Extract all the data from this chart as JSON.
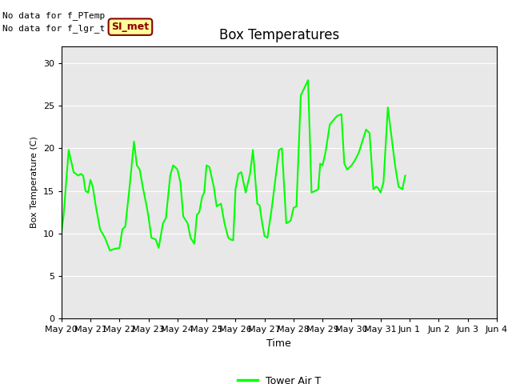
{
  "title": "Box Temperatures",
  "ylabel": "Box Temperature (C)",
  "xlabel": "Time",
  "ylim": [
    0,
    32
  ],
  "yticks": [
    0,
    5,
    10,
    15,
    20,
    25,
    30
  ],
  "line_color": "#00FF00",
  "line_width": 1.5,
  "bg_color": "#E8E8E8",
  "no_data_text1": "No data for f_PTemp",
  "no_data_text2": "No data for f_lgr_t",
  "legend_label": "Tower Air T",
  "annotation_text": "SI_met",
  "annotation_bg": "#FFFF99",
  "annotation_border": "#8B0000",
  "x_labels": [
    "May 20",
    "May 21",
    "May 22",
    "May 23",
    "May 24",
    "May 25",
    "May 26",
    "May 27",
    "May 28",
    "May 29",
    "May 30",
    "May 31",
    "Jun 1",
    "Jun 2",
    "Jun 3",
    "Jun 4"
  ],
  "y_values": [
    10.0,
    12.0,
    19.8,
    17.2,
    16.8,
    17.0,
    16.8,
    15.0,
    14.8,
    16.3,
    15.5,
    13.5,
    10.5,
    9.5,
    8.0,
    8.2,
    8.3,
    10.5,
    10.8,
    15.5,
    20.8,
    18.0,
    17.5,
    15.5,
    13.5,
    12.0,
    9.5,
    9.3,
    8.3,
    11.2,
    11.8,
    16.8,
    18.0,
    17.8,
    17.5,
    16.0,
    12.0,
    11.2,
    9.5,
    8.8,
    12.2,
    12.5,
    14.3,
    14.8,
    18.0,
    17.8,
    15.5,
    13.2,
    13.5,
    11.2,
    9.5,
    9.3,
    9.2,
    15.2,
    17.0,
    17.2,
    14.8,
    17.0,
    19.8,
    13.5,
    13.3,
    11.2,
    9.7,
    9.5,
    13.0,
    19.8,
    20.0,
    11.2,
    11.5,
    13.0,
    13.2,
    26.2,
    28.0,
    14.8,
    15.0,
    15.2,
    18.2,
    18.0,
    19.5,
    22.8,
    23.8,
    24.0,
    18.2,
    17.5,
    18.0,
    18.5,
    19.5,
    22.2,
    21.8,
    15.2,
    15.5,
    15.3,
    14.8,
    16.0,
    24.8,
    18.0,
    15.5,
    15.2,
    16.8
  ],
  "x_fine": [
    0.0,
    0.07,
    0.25,
    0.42,
    0.58,
    0.67,
    0.75,
    0.83,
    0.92,
    1.0,
    1.08,
    1.17,
    1.33,
    1.5,
    1.67,
    1.83,
    2.0,
    2.1,
    2.2,
    2.35,
    2.5,
    2.6,
    2.7,
    2.8,
    2.92,
    3.0,
    3.1,
    3.25,
    3.35,
    3.5,
    3.6,
    3.75,
    3.85,
    3.92,
    4.0,
    4.1,
    4.2,
    4.35,
    4.45,
    4.58,
    4.67,
    4.75,
    4.85,
    4.92,
    5.0,
    5.1,
    5.25,
    5.35,
    5.5,
    5.62,
    5.75,
    5.83,
    5.92,
    6.0,
    6.1,
    6.2,
    6.35,
    6.5,
    6.6,
    6.75,
    6.83,
    6.92,
    7.0,
    7.1,
    7.25,
    7.5,
    7.6,
    7.75,
    7.9,
    8.0,
    8.1,
    8.25,
    8.5,
    8.62,
    8.75,
    8.85,
    8.92,
    9.0,
    9.1,
    9.25,
    9.5,
    9.65,
    9.75,
    9.85,
    10.0,
    10.1,
    10.25,
    10.5,
    10.62,
    10.75,
    10.85,
    10.92,
    11.0,
    11.1,
    11.25,
    11.5,
    11.62,
    11.75,
    11.85
  ]
}
